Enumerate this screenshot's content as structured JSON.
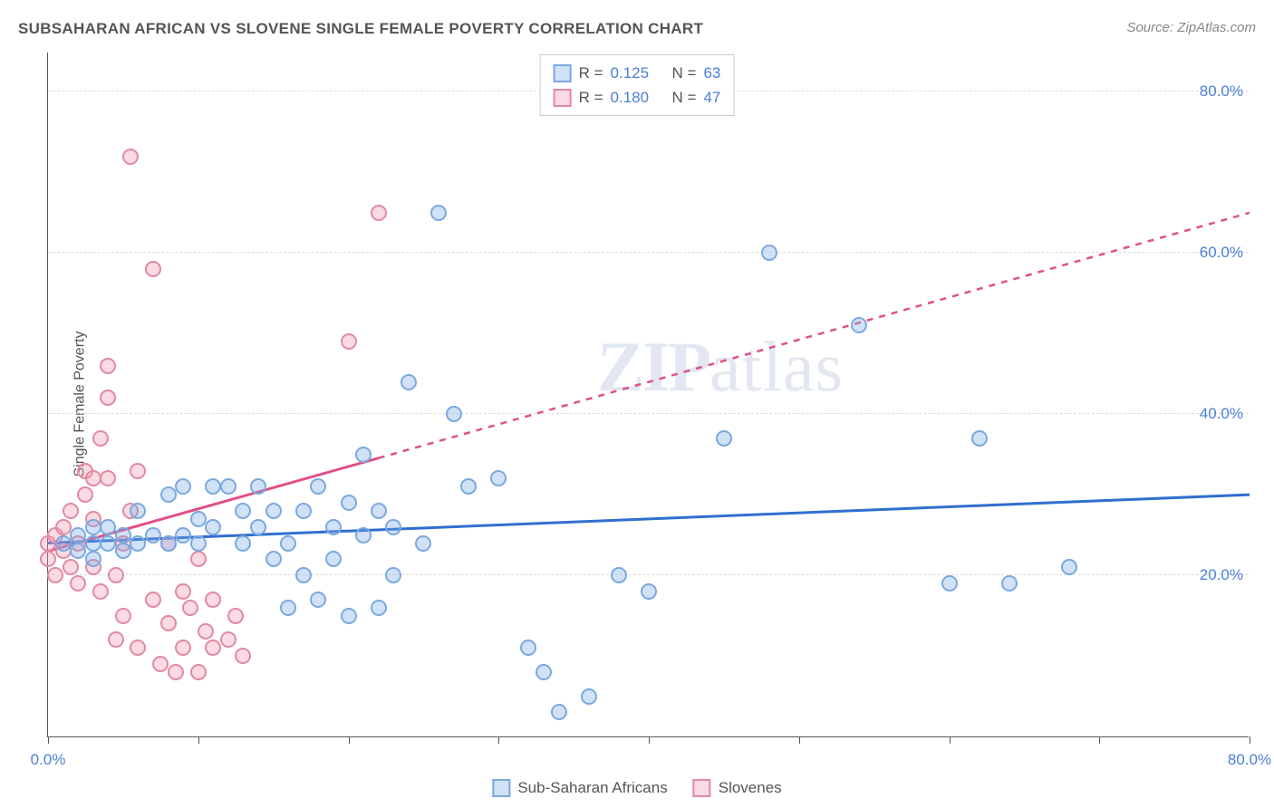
{
  "title": "SUBSAHARAN AFRICAN VS SLOVENE SINGLE FEMALE POVERTY CORRELATION CHART",
  "source": "Source: ZipAtlas.com",
  "ylabel": "Single Female Poverty",
  "watermark": "ZIPatlas",
  "watermark_zip": "ZIP",
  "watermark_rest": "atlas",
  "chart": {
    "type": "scatter",
    "xlim": [
      0,
      80
    ],
    "ylim": [
      0,
      85
    ],
    "x_tick_start_label": "0.0%",
    "x_tick_end_label": "80.0%",
    "x_tick_positions": [
      0,
      10,
      20,
      30,
      40,
      50,
      60,
      70,
      80
    ],
    "y_gridlines": [
      20,
      40,
      60,
      80
    ],
    "y_labels": [
      "20.0%",
      "40.0%",
      "60.0%",
      "80.0%"
    ],
    "background_color": "#ffffff",
    "grid_color": "#dddddd"
  },
  "series": {
    "a": {
      "label": "Sub-Saharan Africans",
      "fill": "rgba(122,170,230,0.35)",
      "stroke": "#7aa9e0",
      "trend_color": "#2f6fd0",
      "trend_dash": "none",
      "trend": {
        "x1": 0,
        "y1": 24,
        "x2": 80,
        "y2": 30
      },
      "r_value": "0.125",
      "n_value": "63",
      "points": [
        [
          1,
          24
        ],
        [
          2,
          23
        ],
        [
          2,
          25
        ],
        [
          3,
          22
        ],
        [
          3,
          26
        ],
        [
          3,
          24
        ],
        [
          4,
          24
        ],
        [
          4,
          26
        ],
        [
          5,
          23
        ],
        [
          5,
          25
        ],
        [
          6,
          24
        ],
        [
          6,
          28
        ],
        [
          7,
          25
        ],
        [
          8,
          24
        ],
        [
          8,
          30
        ],
        [
          9,
          31
        ],
        [
          9,
          25
        ],
        [
          10,
          27
        ],
        [
          10,
          24
        ],
        [
          11,
          26
        ],
        [
          11,
          31
        ],
        [
          12,
          31
        ],
        [
          13,
          28
        ],
        [
          13,
          24
        ],
        [
          14,
          31
        ],
        [
          14,
          26
        ],
        [
          15,
          22
        ],
        [
          15,
          28
        ],
        [
          16,
          16
        ],
        [
          16,
          24
        ],
        [
          17,
          20
        ],
        [
          17,
          28
        ],
        [
          18,
          17
        ],
        [
          18,
          31
        ],
        [
          19,
          26
        ],
        [
          19,
          22
        ],
        [
          20,
          15
        ],
        [
          20,
          29
        ],
        [
          21,
          25
        ],
        [
          21,
          35
        ],
        [
          22,
          16
        ],
        [
          22,
          28
        ],
        [
          23,
          26
        ],
        [
          23,
          20
        ],
        [
          24,
          44
        ],
        [
          25,
          24
        ],
        [
          26,
          65
        ],
        [
          27,
          40
        ],
        [
          28,
          31
        ],
        [
          30,
          32
        ],
        [
          32,
          11
        ],
        [
          33,
          8
        ],
        [
          34,
          3
        ],
        [
          36,
          5
        ],
        [
          38,
          20
        ],
        [
          40,
          18
        ],
        [
          45,
          37
        ],
        [
          48,
          60
        ],
        [
          54,
          51
        ],
        [
          60,
          19
        ],
        [
          62,
          37
        ],
        [
          64,
          19
        ],
        [
          68,
          21
        ]
      ]
    },
    "b": {
      "label": "Slovenes",
      "fill": "rgba(240,150,175,0.35)",
      "stroke": "#e28aa2",
      "trend_color": "#e05088",
      "trend_dash": "7,7",
      "trend_solid_until_x": 22,
      "trend": {
        "x1": 0,
        "y1": 23,
        "x2": 80,
        "y2": 65
      },
      "r_value": "0.180",
      "n_value": "47",
      "points": [
        [
          0,
          22
        ],
        [
          0,
          24
        ],
        [
          0.5,
          20
        ],
        [
          0.5,
          25
        ],
        [
          1,
          23
        ],
        [
          1,
          26
        ],
        [
          1.5,
          21
        ],
        [
          1.5,
          28
        ],
        [
          2,
          24
        ],
        [
          2,
          19
        ],
        [
          2.5,
          30
        ],
        [
          2.5,
          33
        ],
        [
          3,
          32
        ],
        [
          3,
          27
        ],
        [
          3,
          21
        ],
        [
          3.5,
          37
        ],
        [
          3.5,
          18
        ],
        [
          4,
          32
        ],
        [
          4,
          42
        ],
        [
          4,
          46
        ],
        [
          4.5,
          12
        ],
        [
          4.5,
          20
        ],
        [
          5,
          15
        ],
        [
          5,
          24
        ],
        [
          5.5,
          72
        ],
        [
          5.5,
          28
        ],
        [
          6,
          33
        ],
        [
          6,
          11
        ],
        [
          7,
          58
        ],
        [
          7,
          17
        ],
        [
          7.5,
          9
        ],
        [
          8,
          14
        ],
        [
          8,
          24
        ],
        [
          8.5,
          8
        ],
        [
          9,
          11
        ],
        [
          9,
          18
        ],
        [
          9.5,
          16
        ],
        [
          10,
          8
        ],
        [
          10,
          22
        ],
        [
          10.5,
          13
        ],
        [
          11,
          11
        ],
        [
          11,
          17
        ],
        [
          12,
          12
        ],
        [
          12.5,
          15
        ],
        [
          13,
          10
        ],
        [
          20,
          49
        ],
        [
          22,
          65
        ]
      ]
    }
  },
  "stats_legend": {
    "r_prefix": "R =",
    "n_prefix": "N ="
  }
}
